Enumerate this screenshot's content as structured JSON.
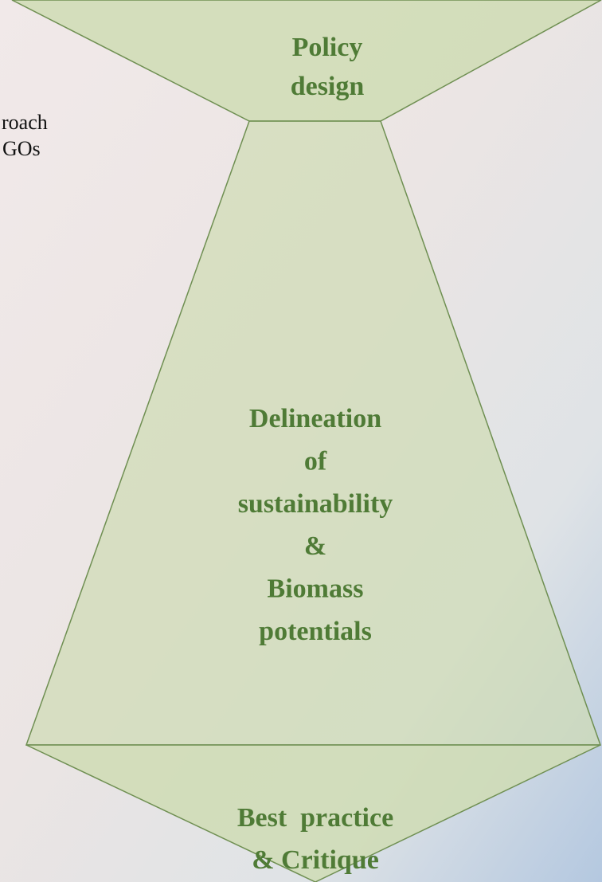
{
  "side_text": {
    "lines": [
      "roach",
      "GOs"
    ]
  },
  "shapes": [
    {
      "name": "top",
      "lines": [
        "Policy",
        "design"
      ]
    },
    {
      "name": "middle",
      "lines": [
        "Delineation",
        "of",
        "sustainability",
        "&",
        "Biomass",
        "potentials"
      ]
    },
    {
      "name": "bottom",
      "lines": [
        "Best  practice",
        "& Critique"
      ]
    }
  ]
}
